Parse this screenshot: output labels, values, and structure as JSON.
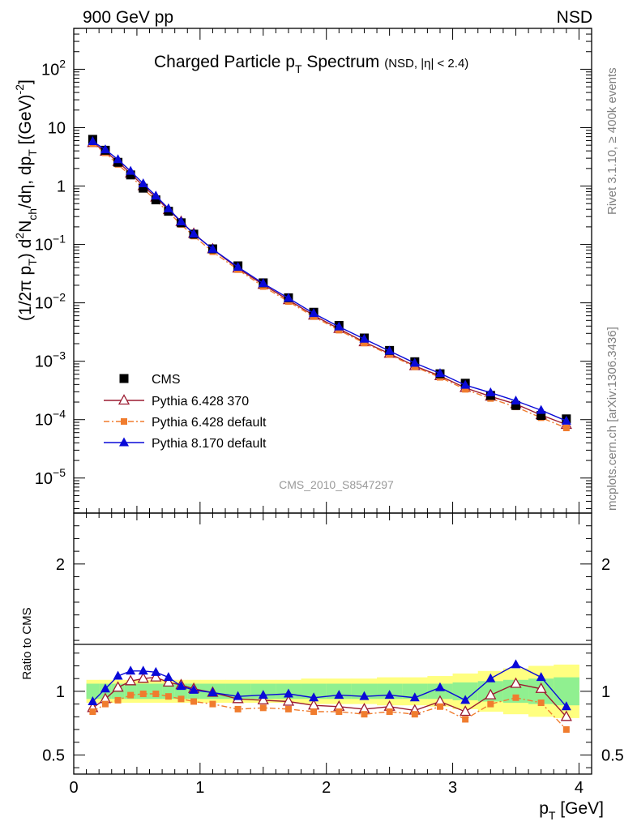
{
  "header": {
    "left_label": "900 GeV pp",
    "right_label": "NSD"
  },
  "chart_data": {
    "type": "scatter",
    "title": "Charged Particle p",
    "title_sub": "T",
    "title_tail": " Spectrum",
    "subtitle": "(NSD, |η| < 2.4)",
    "ylabel": "(1/2π p_T) d²N_ch/dη, dp_T [(GeV)⁻²]",
    "ylabel_pieces": {
      "a": "(1/2π p",
      "a_sub": "T",
      "b": ") d",
      "b_sup": "2",
      "c": "N",
      "c_sub": "ch",
      "d": "/dη, dp",
      "d_sub": "T",
      "e": " [(GeV)",
      "e_sup": "-2",
      "f": "]"
    },
    "xlabel_main": "p",
    "xlabel_sub": "T",
    "xlabel_unit": " [GeV]",
    "ratio_ylabel": "Ratio to CMS",
    "analysis_label": "CMS_2010_S8547297",
    "side_label_top": "Rivet 3.1.10, ≥ 400k events",
    "side_label_bottom": "mcplots.cern.ch [arXiv:1306.3436]",
    "xlim": [
      0,
      4.1
    ],
    "main_ylim_log10": [
      -5.6,
      2.7
    ],
    "ratio_ylim": [
      0.35,
      2.4
    ],
    "x_ticks": [
      {
        "v": 0,
        "label": "0"
      },
      {
        "v": 1,
        "label": "1"
      },
      {
        "v": 2,
        "label": "2"
      },
      {
        "v": 3,
        "label": "3"
      },
      {
        "v": 4,
        "label": "4"
      }
    ],
    "main_y_ticks": [
      {
        "exp": 2,
        "base": "10",
        "sup": "2"
      },
      {
        "exp": 1,
        "base": "10",
        "sup": ""
      },
      {
        "exp": 0,
        "base": "1",
        "sup": ""
      },
      {
        "exp": -1,
        "base": "10",
        "sup": "−1"
      },
      {
        "exp": -2,
        "base": "10",
        "sup": "−2"
      },
      {
        "exp": -3,
        "base": "10",
        "sup": "−3"
      },
      {
        "exp": -4,
        "base": "10",
        "sup": "−4"
      },
      {
        "exp": -5,
        "base": "10",
        "sup": "−5"
      }
    ],
    "ratio_y_ticks": [
      {
        "v": 0.5,
        "label": "0.5"
      },
      {
        "v": 1,
        "label": "1"
      },
      {
        "v": 2,
        "label": "2"
      }
    ],
    "x": [
      0.15,
      0.25,
      0.35,
      0.45,
      0.55,
      0.65,
      0.75,
      0.85,
      0.95,
      1.1,
      1.3,
      1.5,
      1.7,
      1.9,
      2.1,
      2.3,
      2.5,
      2.7,
      2.9,
      3.1,
      3.3,
      3.5,
      3.7,
      3.9
    ],
    "bin_edges": [
      0.1,
      0.2,
      0.3,
      0.4,
      0.5,
      0.6,
      0.7,
      0.8,
      0.9,
      1.0,
      1.2,
      1.4,
      1.6,
      1.8,
      2.0,
      2.2,
      2.4,
      2.6,
      2.8,
      3.0,
      3.2,
      3.4,
      3.6,
      3.8,
      4.0
    ],
    "band_inner": [
      0.06,
      0.06,
      0.06,
      0.06,
      0.06,
      0.06,
      0.06,
      0.06,
      0.06,
      0.06,
      0.06,
      0.06,
      0.06,
      0.06,
      0.06,
      0.06,
      0.06,
      0.06,
      0.06,
      0.07,
      0.08,
      0.09,
      0.1,
      0.11
    ],
    "band_outer": [
      0.09,
      0.09,
      0.09,
      0.09,
      0.09,
      0.09,
      0.09,
      0.09,
      0.09,
      0.09,
      0.09,
      0.09,
      0.09,
      0.1,
      0.1,
      0.1,
      0.11,
      0.11,
      0.12,
      0.14,
      0.16,
      0.18,
      0.2,
      0.21
    ],
    "series": [
      {
        "name": "CMS",
        "color": "#000000",
        "marker": "square",
        "line": "none",
        "values": [
          6.3,
          4.1,
          2.55,
          1.55,
          0.92,
          0.58,
          0.37,
          0.235,
          0.15,
          0.084,
          0.043,
          0.022,
          0.0122,
          0.0069,
          0.0041,
          0.0025,
          0.00153,
          0.00098,
          0.00061,
          0.00042,
          0.00026,
          0.000175,
          0.000118,
          0.000103
        ],
        "ratio": [
          1,
          1,
          1,
          1,
          1,
          1,
          1,
          1,
          1,
          1,
          1,
          1,
          1,
          1,
          1,
          1,
          1,
          1,
          1,
          1,
          1,
          1,
          1,
          1
        ]
      },
      {
        "name": "Pythia 6.428 370",
        "color": "#9b1b30",
        "marker": "triangle-open",
        "line": "solid",
        "values": [
          5.5,
          3.9,
          2.6,
          1.65,
          1.0,
          0.64,
          0.39,
          0.245,
          0.153,
          0.083,
          0.039,
          0.0205,
          0.0112,
          0.0061,
          0.0036,
          0.00213,
          0.00135,
          0.00083,
          0.00056,
          0.00035,
          0.00025,
          0.000185,
          0.00012,
          8.2e-05
        ],
        "ratio": [
          0.87,
          0.94,
          1.03,
          1.08,
          1.1,
          1.11,
          1.07,
          1.05,
          1.02,
          0.99,
          0.94,
          0.93,
          0.92,
          0.89,
          0.88,
          0.86,
          0.88,
          0.85,
          0.92,
          0.84,
          0.97,
          1.06,
          1.02,
          0.8
        ]
      },
      {
        "name": "Pythia 6.428 default",
        "color": "#f07c2e",
        "marker": "square-small",
        "line": "dashdot",
        "values": [
          5.3,
          3.7,
          2.35,
          1.5,
          0.9,
          0.57,
          0.355,
          0.22,
          0.139,
          0.075,
          0.037,
          0.019,
          0.0105,
          0.0058,
          0.0034,
          0.00205,
          0.0013,
          0.0008,
          0.00053,
          0.00033,
          0.00023,
          0.000165,
          0.000108,
          7.2e-05
        ],
        "ratio": [
          0.84,
          0.9,
          0.93,
          0.97,
          0.98,
          0.98,
          0.96,
          0.94,
          0.92,
          0.9,
          0.86,
          0.87,
          0.86,
          0.84,
          0.84,
          0.82,
          0.84,
          0.82,
          0.88,
          0.78,
          0.9,
          0.95,
          0.91,
          0.7
        ]
      },
      {
        "name": "Pythia 8.170 default",
        "color": "#0a0ad8",
        "marker": "triangle",
        "line": "solid",
        "values": [
          5.8,
          4.2,
          2.85,
          1.8,
          1.1,
          0.68,
          0.41,
          0.245,
          0.152,
          0.083,
          0.041,
          0.0215,
          0.012,
          0.0066,
          0.0039,
          0.0024,
          0.0015,
          0.00093,
          0.00062,
          0.00039,
          0.00029,
          0.00021,
          0.000145,
          9.5e-05
        ],
        "ratio": [
          0.92,
          1.02,
          1.12,
          1.16,
          1.16,
          1.15,
          1.11,
          1.04,
          1.01,
          0.99,
          0.96,
          0.97,
          0.98,
          0.95,
          0.97,
          0.96,
          0.97,
          0.95,
          1.03,
          0.93,
          1.1,
          1.21,
          1.11,
          0.88
        ]
      }
    ]
  }
}
